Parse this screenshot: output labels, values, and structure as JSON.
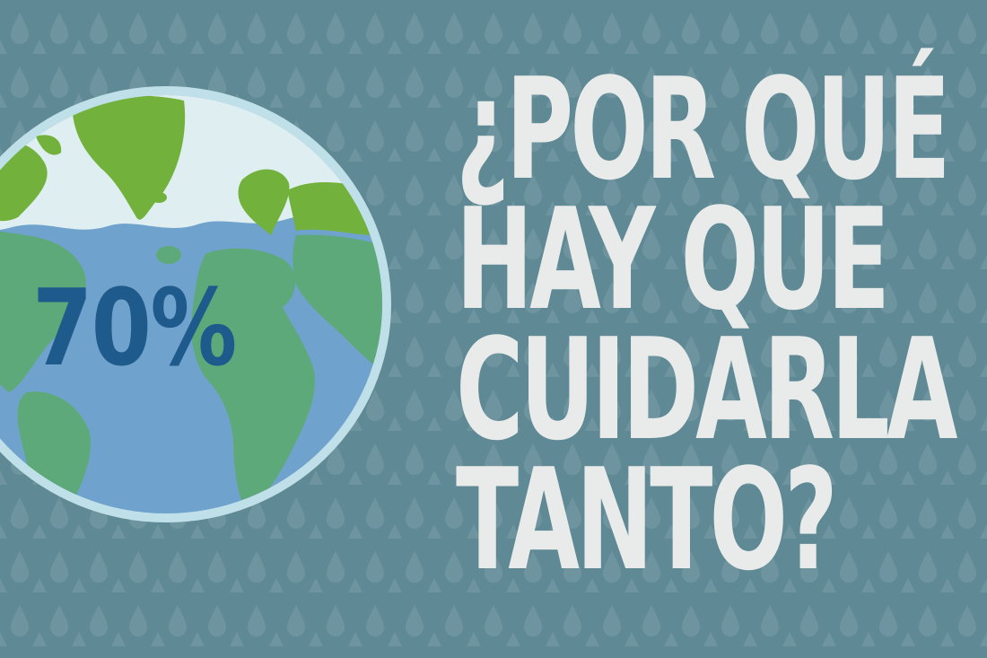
{
  "background_color": "#5f8994",
  "raindrop_color": "#7a9ea8",
  "globe": {
    "ocean_color": "#6fa2cc",
    "land_color": "#5ea97a",
    "arctic_land_color": "#72b13c",
    "ice_color": "#dfeef0",
    "rim_color": "#bfe0e8",
    "percent_label": "70%",
    "percent_color": "#1e5b8c"
  },
  "headline": {
    "lines": [
      "¿POR QUÉ",
      "HAY QUE",
      "CUIDARLA",
      "TANTO?"
    ],
    "color": "#e8ebea"
  }
}
